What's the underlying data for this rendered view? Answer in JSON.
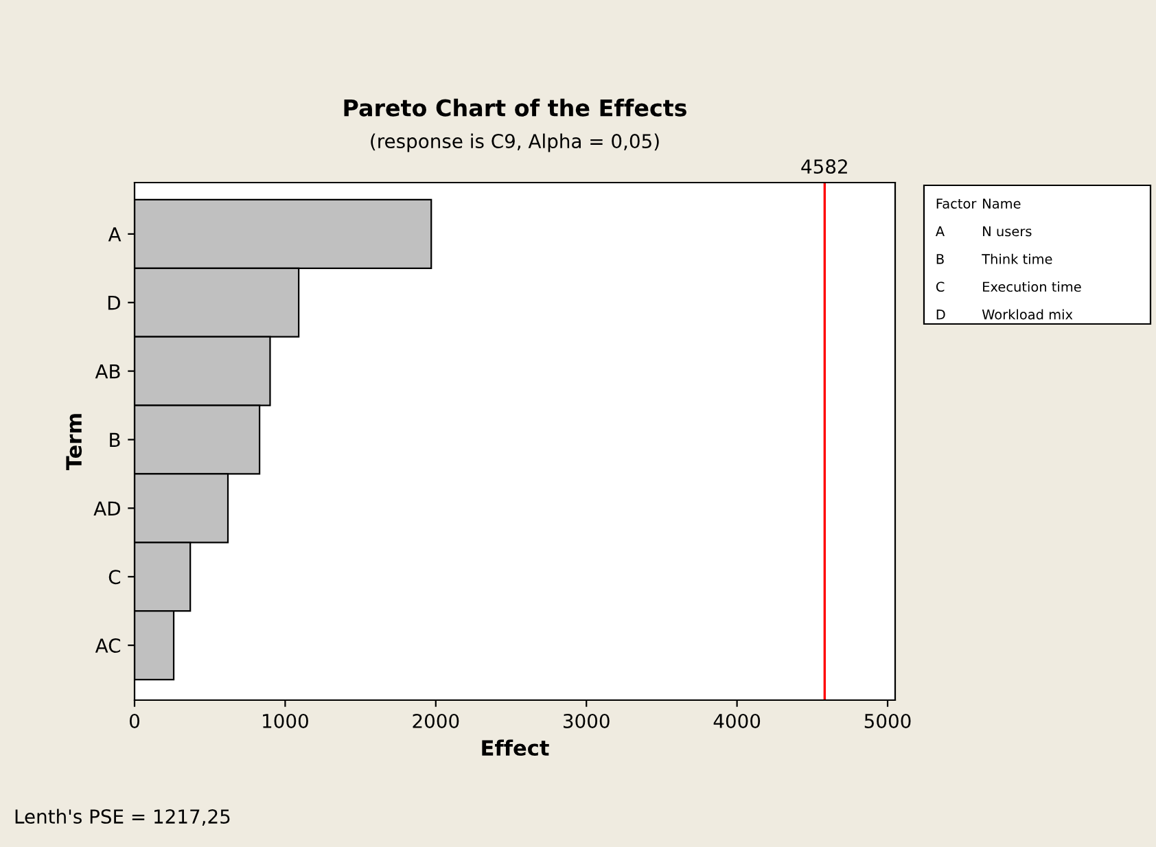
{
  "chart_data": {
    "type": "bar",
    "orientation": "horizontal",
    "title": "Pareto Chart of the Effects",
    "subtitle": "(response is C9, Alpha = 0,05)",
    "xlabel": "Effect",
    "ylabel": "Term",
    "categories": [
      "A",
      "D",
      "AB",
      "B",
      "AD",
      "C",
      "AC"
    ],
    "values": [
      1970,
      1090,
      900,
      830,
      620,
      370,
      260
    ],
    "color": "#c0c0c0",
    "xlim": [
      0,
      5050
    ],
    "xticks": [
      0,
      1000,
      2000,
      3000,
      4000,
      5000
    ],
    "ref_lines": [
      {
        "axis": "x",
        "value": 4582,
        "label": "4582",
        "color": "#ff0000"
      }
    ],
    "grid": false,
    "legend": false,
    "annotations": [
      "Factor",
      "Name",
      "A",
      "N users",
      "B",
      "Think time",
      "C",
      "Execution time",
      "D",
      "Workload mix",
      "Lenth's PSE = 1217,25"
    ]
  }
}
